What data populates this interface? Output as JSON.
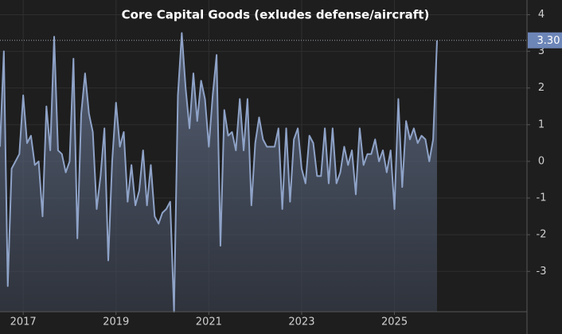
{
  "chart_data": {
    "type": "area",
    "title": "Core Capital Goods (exludes defense/aircraft)",
    "color": "#8fa3c8",
    "x": [
      2016.5,
      2016.583,
      2016.667,
      2016.75,
      2016.833,
      2016.917,
      2017.0,
      2017.083,
      2017.167,
      2017.25,
      2017.333,
      2017.417,
      2017.5,
      2017.583,
      2017.667,
      2017.75,
      2017.833,
      2017.917,
      2018.0,
      2018.083,
      2018.167,
      2018.25,
      2018.333,
      2018.417,
      2018.5,
      2018.583,
      2018.667,
      2018.75,
      2018.833,
      2018.917,
      2019.0,
      2019.083,
      2019.167,
      2019.25,
      2019.333,
      2019.417,
      2019.5,
      2019.583,
      2019.667,
      2019.75,
      2019.833,
      2019.917,
      2020.0,
      2020.083,
      2020.167,
      2020.25,
      2020.333,
      2020.417,
      2020.5,
      2020.583,
      2020.667,
      2020.75,
      2020.833,
      2020.917,
      2021.0,
      2021.083,
      2021.167,
      2021.25,
      2021.333,
      2021.417,
      2021.5,
      2021.583,
      2021.667,
      2021.75,
      2021.833,
      2021.917,
      2022.0,
      2022.083,
      2022.167,
      2022.25,
      2022.333,
      2022.417,
      2022.5,
      2022.583,
      2022.667,
      2022.75,
      2022.833,
      2022.917,
      2023.0,
      2023.083,
      2023.167,
      2023.25,
      2023.333,
      2023.417,
      2023.5,
      2023.583,
      2023.667,
      2023.75,
      2023.833,
      2023.917,
      2024.0,
      2024.083,
      2024.167,
      2024.25,
      2024.333,
      2024.417,
      2024.5,
      2024.583,
      2024.667,
      2024.75,
      2024.833,
      2024.917,
      2025.0,
      2025.083,
      2025.167,
      2025.25,
      2025.333,
      2025.417,
      2025.5,
      2025.583,
      2025.667,
      2025.75,
      2025.833,
      2025.917
    ],
    "values": [
      0.4,
      3.0,
      -3.4,
      -0.2,
      0.0,
      0.2,
      1.8,
      0.5,
      0.7,
      -0.1,
      0.0,
      -1.5,
      1.5,
      0.3,
      3.4,
      0.3,
      0.2,
      -0.3,
      0.0,
      2.8,
      -2.1,
      1.3,
      2.4,
      1.3,
      0.8,
      -1.3,
      -0.4,
      0.9,
      -2.7,
      0.0,
      1.6,
      0.4,
      0.8,
      -1.1,
      -0.1,
      -1.2,
      -0.8,
      0.3,
      -1.2,
      -0.1,
      -1.5,
      -1.7,
      -1.4,
      -1.3,
      -1.1,
      -4.1,
      1.8,
      3.5,
      2.0,
      0.9,
      2.4,
      1.1,
      2.2,
      1.7,
      0.4,
      1.8,
      2.9,
      -2.3,
      1.4,
      0.7,
      0.8,
      0.3,
      1.7,
      0.3,
      1.7,
      -1.2,
      0.5,
      1.2,
      0.6,
      0.4,
      0.4,
      0.4,
      0.9,
      -1.3,
      0.9,
      -1.1,
      0.6,
      0.9,
      -0.2,
      -0.6,
      0.7,
      0.5,
      -0.4,
      -0.4,
      0.9,
      -0.6,
      0.9,
      -0.6,
      -0.3,
      0.4,
      -0.1,
      0.3,
      -0.9,
      0.9,
      -0.1,
      0.2,
      0.2,
      0.6,
      0.0,
      0.3,
      -0.3,
      0.3,
      -1.3,
      1.7,
      -0.7,
      1.1,
      0.6,
      0.9,
      0.5,
      0.7,
      0.6,
      0.0,
      0.6,
      3.3
    ],
    "last_label": "3.30",
    "xlim": [
      2016.5,
      2027.855
    ],
    "xticks": [
      2017,
      2019,
      2021,
      2023,
      2025
    ],
    "ylim": [
      -4.1,
      4.4
    ],
    "yticks": [
      -3,
      -2,
      -1,
      0,
      1,
      2,
      3,
      4
    ],
    "grid": true
  }
}
